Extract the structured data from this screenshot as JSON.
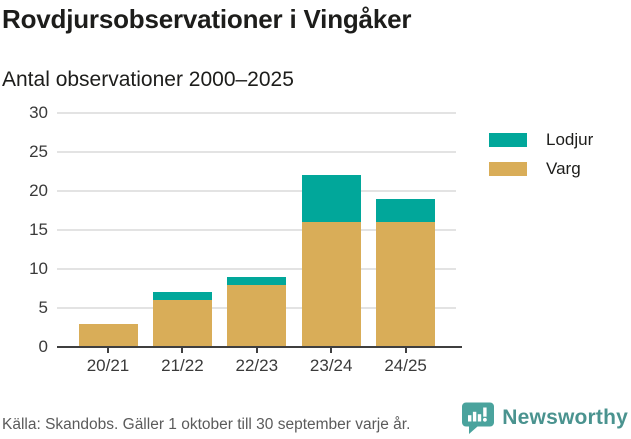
{
  "header": {
    "title": "Rovdjursobservationer i Vingåker",
    "subtitle": "Antal observationer 2000–2025"
  },
  "chart_data": {
    "type": "bar",
    "stacked": true,
    "title": "Rovdjursobservationer i Vingåker",
    "subtitle": "Antal observationer 2000–2025",
    "categories": [
      "20/21",
      "21/22",
      "22/23",
      "23/24",
      "24/25"
    ],
    "series": [
      {
        "name": "Lodjur",
        "color": "#01a79a",
        "values": [
          0,
          1,
          1,
          6,
          3
        ]
      },
      {
        "name": "Varg",
        "color": "#d9ad58",
        "values": [
          3,
          6,
          8,
          16,
          16
        ]
      }
    ],
    "stack_order_bottom_to_top": [
      "Varg",
      "Lodjur"
    ],
    "totals": [
      3,
      7,
      9,
      22,
      19
    ],
    "ylim": [
      0,
      30
    ],
    "yticks": [
      0,
      5,
      10,
      15,
      20,
      25,
      30
    ],
    "grid": true,
    "legend_position": "right"
  },
  "footer": {
    "source": "Källa: Skandobs. Gäller 1 oktober till 30 september varje år.",
    "brand": "Newsworthy"
  },
  "colors": {
    "lodjur": "#01a79a",
    "varg": "#d9ad58",
    "brand_teal": "#4a938f",
    "logo_bubble": "#4aa39d",
    "grid": "#e3e3e3",
    "axis": "#3f3f3f",
    "text_dark": "#1d1d1b",
    "text_muted": "#5b5b5b"
  }
}
